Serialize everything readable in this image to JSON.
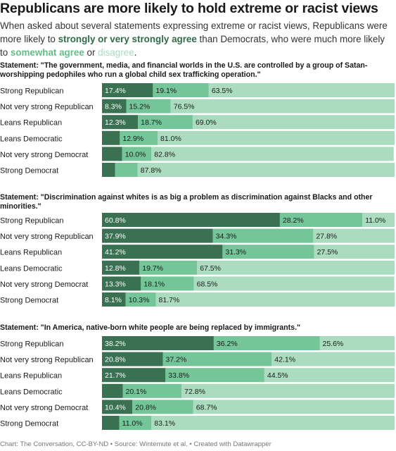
{
  "title": "Republicans are more likely to hold extreme or racist views",
  "subtitle": {
    "part1": "When asked about several statements expressing extreme or racist views, Republicans were more likely to ",
    "key1": "strongly or very strongly agree",
    "part2": " than Democrats, who were much more likely to ",
    "key2": "somewhat agree",
    "part3": " or ",
    "key3": "disagree",
    "part4": "."
  },
  "footer": "Chart: The Conversation, CC-BY-ND • Source: Wintemute et al. • Created with Datawrapper",
  "colors": {
    "strongly_agree": "#3b7153",
    "somewhat_agree": "#74c698",
    "disagree": "#abdcc0"
  },
  "chart_data": [
    {
      "type": "bar",
      "stacked": true,
      "orientation": "horizontal",
      "title": "Statement: \"The government, media, and financial worlds in the U.S. are controlled by a group of Satan-worshipping pedophiles who run a global child sex trafficking operation.\"",
      "categories": [
        "Strong Republican",
        "Not very strong Republican",
        "Leans Republican",
        "Leans Democratic",
        "Not very strong Democrat",
        "Strong Democrat"
      ],
      "series": [
        {
          "key": "strongly_agree",
          "values": [
            17.4,
            8.3,
            12.3,
            6.1,
            6.9,
            4.5
          ],
          "labels": [
            "17.4%",
            "8.3%",
            "12.3%",
            "",
            "",
            ""
          ]
        },
        {
          "key": "somewhat_agree",
          "values": [
            19.1,
            15.2,
            18.7,
            12.9,
            10.0,
            7.7
          ],
          "labels": [
            "19.1%",
            "15.2%",
            "18.7%",
            "12.9%",
            "10.0%",
            ""
          ]
        },
        {
          "key": "disagree",
          "values": [
            63.5,
            76.5,
            69.0,
            81.0,
            82.8,
            87.8
          ],
          "labels": [
            "63.5%",
            "76.5%",
            "69.0%",
            "81.0%",
            "82.8%",
            "87.8%"
          ]
        }
      ]
    },
    {
      "type": "bar",
      "stacked": true,
      "orientation": "horizontal",
      "title": "Statement: \"Discrimination against whites is as big a problem as discrimination against Blacks and other minorities.\"",
      "categories": [
        "Strong Republican",
        "Not very strong Republican",
        "Leans Republican",
        "Leans Democratic",
        "Not very strong Democrat",
        "Strong Democrat"
      ],
      "series": [
        {
          "key": "strongly_agree",
          "values": [
            60.8,
            37.9,
            41.2,
            12.8,
            13.3,
            8.1
          ],
          "labels": [
            "60.8%",
            "37.9%",
            "41.2%",
            "12.8%",
            "13.3%",
            "8.1%"
          ]
        },
        {
          "key": "somewhat_agree",
          "values": [
            28.2,
            34.3,
            31.3,
            19.7,
            18.1,
            10.3
          ],
          "labels": [
            "28.2%",
            "34.3%",
            "31.3%",
            "19.7%",
            "18.1%",
            "10.3%"
          ]
        },
        {
          "key": "disagree",
          "values": [
            11.0,
            27.8,
            27.5,
            67.5,
            68.5,
            81.7
          ],
          "labels": [
            "11.0%",
            "27.8%",
            "27.5%",
            "67.5%",
            "68.5%",
            "81.7%"
          ]
        }
      ]
    },
    {
      "type": "bar",
      "stacked": true,
      "orientation": "horizontal",
      "title": "Statement: \"In America, native-born white people are being replaced by immigrants.\"",
      "categories": [
        "Strong Republican",
        "Not very strong Republican",
        "Leans Republican",
        "Leans Democratic",
        "Not very strong Democrat",
        "Strong Democrat"
      ],
      "series": [
        {
          "key": "strongly_agree",
          "values": [
            38.2,
            20.8,
            21.7,
            7.1,
            10.4,
            5.9
          ],
          "labels": [
            "38.2%",
            "20.8%",
            "21.7%",
            "",
            "10.4%",
            ""
          ]
        },
        {
          "key": "somewhat_agree",
          "values": [
            36.2,
            37.2,
            33.8,
            20.1,
            20.8,
            11.0
          ],
          "labels": [
            "36.2%",
            "37.2%",
            "33.8%",
            "20.1%",
            "20.8%",
            "11.0%"
          ]
        },
        {
          "key": "disagree",
          "values": [
            25.6,
            42.1,
            44.5,
            72.8,
            68.7,
            83.1
          ],
          "labels": [
            "25.6%",
            "42.1%",
            "44.5%",
            "72.8%",
            "68.7%",
            "83.1%"
          ]
        }
      ]
    }
  ]
}
